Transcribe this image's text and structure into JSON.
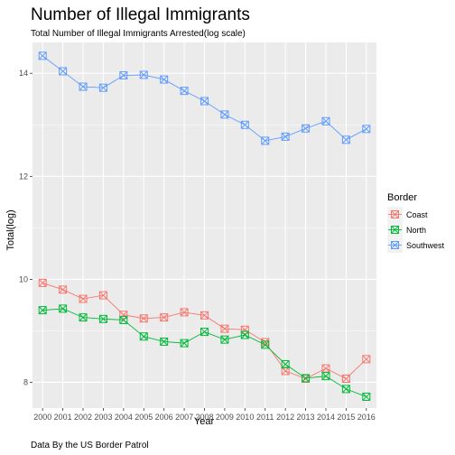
{
  "chart_data": {
    "type": "line",
    "title": "Number of Illegal Immigrants",
    "subtitle": "Total Number of Illegal Immigrants Arrested(log scale)",
    "xlabel": "Year",
    "ylabel": "Total(log)",
    "caption": "Data By the US Border Patrol",
    "legend_title": "Border",
    "legend_position": "right",
    "grid": true,
    "ylim": [
      7.5,
      14.6
    ],
    "y_ticks": [
      8,
      10,
      12,
      14
    ],
    "categories": [
      "2000",
      "2001",
      "2002",
      "2003",
      "2004",
      "2005",
      "2006",
      "2007",
      "2008",
      "2009",
      "2010",
      "2011",
      "2012",
      "2013",
      "2014",
      "2015",
      "2016"
    ],
    "series": [
      {
        "name": "Coast",
        "color": "#F8766D",
        "values": [
          9.93,
          9.8,
          9.62,
          9.69,
          9.31,
          9.24,
          9.26,
          9.36,
          9.3,
          9.04,
          9.02,
          8.78,
          8.22,
          8.07,
          8.27,
          8.07,
          8.45
        ]
      },
      {
        "name": "North",
        "color": "#00BA38",
        "values": [
          9.4,
          9.43,
          9.26,
          9.23,
          9.21,
          8.89,
          8.79,
          8.76,
          8.98,
          8.83,
          8.92,
          8.73,
          8.35,
          8.08,
          8.12,
          7.87,
          7.72
        ]
      },
      {
        "name": "Southwest",
        "color": "#619CFF",
        "values": [
          14.34,
          14.04,
          13.74,
          13.72,
          13.96,
          13.97,
          13.88,
          13.66,
          13.46,
          13.2,
          13.0,
          12.69,
          12.77,
          12.93,
          13.07,
          12.71,
          12.92
        ]
      }
    ]
  }
}
